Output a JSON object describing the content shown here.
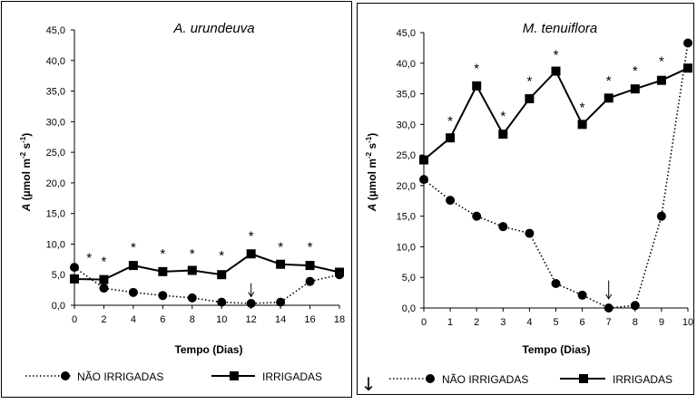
{
  "chart_data": [
    {
      "type": "line",
      "title": "A. urundeuva",
      "xlabel": "Tempo (Dias)",
      "ylabel_italic": "A",
      "ylabel_rest": " (µmol m",
      "ylabel_sup1": "-2",
      "ylabel_mid": " s",
      "ylabel_sup2": "-1",
      "ylabel_end": ")",
      "xlim": [
        0,
        18
      ],
      "ylim": [
        0,
        45
      ],
      "x_ticks": [
        0,
        2,
        4,
        6,
        8,
        10,
        12,
        14,
        16,
        18
      ],
      "y_ticks": [
        "0,0",
        "5,0",
        "10,0",
        "15,0",
        "20,0",
        "25,0",
        "30,0",
        "35,0",
        "40,0",
        "45,0"
      ],
      "series": [
        {
          "name": "NÃO IRRIGADAS",
          "style": "dotted-circle",
          "x": [
            0,
            2,
            4,
            6,
            8,
            10,
            12,
            14,
            16,
            18
          ],
          "values": [
            6.2,
            2.8,
            2.1,
            1.6,
            1.2,
            0.5,
            0.3,
            0.5,
            3.9,
            5.0
          ]
        },
        {
          "name": "IRRIGADAS",
          "style": "solid-square",
          "x": [
            0,
            2,
            4,
            6,
            8,
            10,
            12,
            14,
            16,
            18
          ],
          "values": [
            4.3,
            4.2,
            6.5,
            5.5,
            5.7,
            5.0,
            8.4,
            6.7,
            6.5,
            5.4
          ]
        }
      ],
      "significance": [
        {
          "x": 1,
          "y": 8.2,
          "text": "*"
        },
        {
          "x": 2,
          "y": 7.6,
          "text": "*"
        },
        {
          "x": 4,
          "y": 9.9,
          "text": "*"
        },
        {
          "x": 6,
          "y": 8.9,
          "text": "*"
        },
        {
          "x": 8,
          "y": 8.9,
          "text": "*"
        },
        {
          "x": 10,
          "y": 8.6,
          "text": "*"
        },
        {
          "x": 12,
          "y": 11.8,
          "text": "*"
        },
        {
          "x": 14,
          "y": 10.0,
          "text": "*"
        },
        {
          "x": 16,
          "y": 10.0,
          "text": "*"
        }
      ],
      "arrow": {
        "x": 12,
        "y_top": 3.6,
        "y_bottom": 1.4,
        "text": "↓"
      }
    },
    {
      "type": "line",
      "title": "M. tenuiflora",
      "xlabel": "Tempo (Dias)",
      "ylabel_italic": "A",
      "ylabel_rest": " (µmol m",
      "ylabel_sup1": "-2",
      "ylabel_mid": " s",
      "ylabel_sup2": "-1",
      "ylabel_end": ")",
      "xlim": [
        0,
        10
      ],
      "ylim": [
        0,
        45
      ],
      "x_ticks": [
        0,
        1,
        2,
        3,
        4,
        5,
        6,
        7,
        8,
        9,
        10
      ],
      "y_ticks": [
        "0,0",
        "5,0",
        "10,0",
        "15,0",
        "20,0",
        "25,0",
        "30,0",
        "35,0",
        "40,0",
        "45,0"
      ],
      "series": [
        {
          "name": "NÃO IRRIGADAS",
          "style": "dotted-circle",
          "x": [
            0,
            1,
            2,
            3,
            4,
            5,
            6,
            7,
            8,
            9,
            10
          ],
          "values": [
            21.0,
            17.6,
            15.0,
            13.3,
            12.2,
            4.0,
            2.1,
            0.0,
            0.4,
            15.0,
            43.3
          ]
        },
        {
          "name": "IRRIGADAS",
          "style": "solid-square",
          "x": [
            0,
            1,
            2,
            3,
            4,
            5,
            6,
            7,
            8,
            9,
            10
          ],
          "values": [
            24.2,
            27.8,
            36.3,
            28.4,
            34.2,
            38.7,
            30.0,
            34.3,
            35.8,
            37.2,
            39.2
          ]
        }
      ],
      "significance": [
        {
          "x": 1,
          "y": 31.0,
          "text": "*"
        },
        {
          "x": 2,
          "y": 39.6,
          "text": "*"
        },
        {
          "x": 3,
          "y": 31.8,
          "text": "*"
        },
        {
          "x": 4,
          "y": 37.5,
          "text": "*"
        },
        {
          "x": 5,
          "y": 41.8,
          "text": "*"
        },
        {
          "x": 6,
          "y": 33.2,
          "text": "*"
        },
        {
          "x": 7,
          "y": 37.6,
          "text": "*"
        },
        {
          "x": 8,
          "y": 39.2,
          "text": "*"
        },
        {
          "x": 9,
          "y": 40.8,
          "text": "*"
        }
      ],
      "arrow": {
        "x": 7,
        "y_top": 4.5,
        "y_bottom": 1.5,
        "text": "↓"
      }
    }
  ],
  "legend": [
    {
      "label": "NÃO IRRIGADAS",
      "style": "dotted-circle"
    },
    {
      "label": "IRRIGADAS",
      "style": "solid-square"
    }
  ],
  "stray_arrow": "↓"
}
